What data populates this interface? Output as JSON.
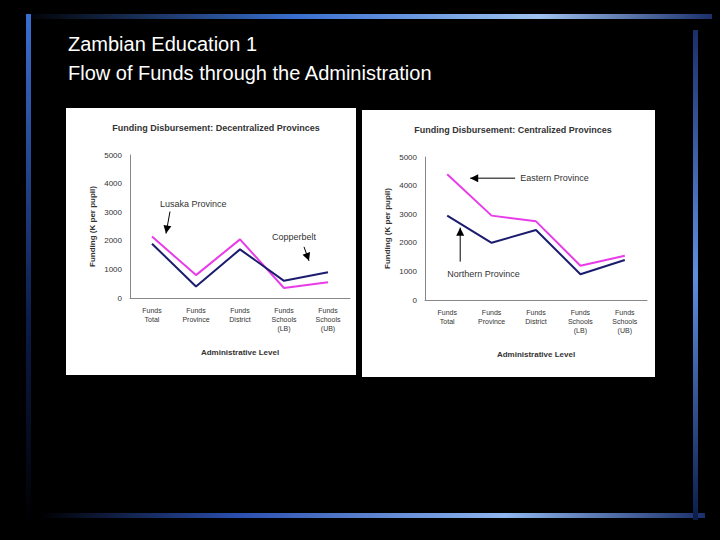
{
  "slide": {
    "title": [
      "Zambian Education 1",
      "Flow of Funds through the Administration"
    ]
  },
  "chart_data": [
    {
      "type": "line",
      "title": "Funding Disbursement: Decentralized Provinces",
      "x_label": "Administrative Level",
      "y_label": "Funding (K per pupil)",
      "categories": [
        "Funds\nTotal",
        "Funds\nProvince",
        "Funds\nDistrict",
        "Funds\nSchools\n(LB)",
        "Funds\nSchools\n(UB)"
      ],
      "series": [
        {
          "name": "Lusaka Province",
          "color": "#e83ce8",
          "values": [
            2150,
            800,
            2050,
            350,
            550
          ]
        },
        {
          "name": "Copperbelt",
          "color": "#1c1c6e",
          "values": [
            1900,
            400,
            1700,
            600,
            900
          ]
        }
      ],
      "ylim": [
        0,
        5000
      ],
      "yticks": [
        0,
        1000,
        2000,
        3000,
        4000,
        5000
      ],
      "grid": false
    },
    {
      "type": "line",
      "title": "Funding Disbursement: Centralized Provinces",
      "x_label": "Administrative Level",
      "y_label": "Funding (K per pupil)",
      "categories": [
        "Funds\nTotal",
        "Funds\nProvince",
        "Funds\nDistrict",
        "Funds\nSchools\n(LB)",
        "Funds\nSchools\n(UB)"
      ],
      "series": [
        {
          "name": "Eastern Province",
          "color": "#e83ce8",
          "values": [
            4400,
            2950,
            2750,
            1200,
            1550
          ]
        },
        {
          "name": "Northern Province",
          "color": "#1c1c6e",
          "values": [
            2950,
            2000,
            2450,
            900,
            1400
          ]
        }
      ],
      "ylim": [
        0,
        5000
      ],
      "yticks": [
        0,
        1000,
        2000,
        3000,
        4000,
        5000
      ],
      "grid": false
    }
  ]
}
